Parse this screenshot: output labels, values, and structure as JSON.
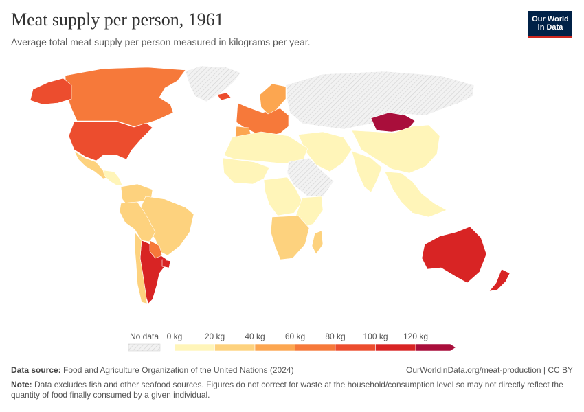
{
  "header": {
    "title": "Meat supply per person, 1961",
    "subtitle": "Average total meat supply per person measured in kilograms per year.",
    "logo_line1": "Our World",
    "logo_line2": "in Data"
  },
  "chart_data": {
    "type": "choropleth-map",
    "year": 1961,
    "unit": "kg",
    "legend": {
      "no_data_label": "No data",
      "tick_labels": [
        "0 kg",
        "20 kg",
        "40 kg",
        "60 kg",
        "80 kg",
        "100 kg",
        "120 kg"
      ],
      "bins": [
        {
          "min": 0,
          "max": 20,
          "color": "#fff5b9"
        },
        {
          "min": 20,
          "max": 40,
          "color": "#fdd27e"
        },
        {
          "min": 40,
          "max": 60,
          "color": "#fca650"
        },
        {
          "min": 60,
          "max": 80,
          "color": "#f6793a"
        },
        {
          "min": 80,
          "max": 100,
          "color": "#ec4d2e"
        },
        {
          "min": 100,
          "max": 120,
          "color": "#d82424"
        },
        {
          "min": 120,
          "max": null,
          "color": "#a90e3b"
        }
      ],
      "no_data_color": "#ececec"
    },
    "regions": [
      {
        "name": "Canada",
        "bin": 3
      },
      {
        "name": "United States",
        "bin": 4
      },
      {
        "name": "Alaska",
        "bin": 4
      },
      {
        "name": "Mexico",
        "bin": 1
      },
      {
        "name": "Central America",
        "bin": 0
      },
      {
        "name": "Colombia / Venezuela",
        "bin": 1
      },
      {
        "name": "Brazil",
        "bin": 1
      },
      {
        "name": "Peru / Bolivia",
        "bin": 1
      },
      {
        "name": "Argentina",
        "bin": 5
      },
      {
        "name": "Uruguay",
        "bin": 5
      },
      {
        "name": "Chile",
        "bin": 1
      },
      {
        "name": "Paraguay",
        "bin": 3
      },
      {
        "name": "Greenland",
        "bin": null
      },
      {
        "name": "Iceland",
        "bin": 4
      },
      {
        "name": "Western Europe",
        "bin": 3
      },
      {
        "name": "Scandinavia",
        "bin": 2
      },
      {
        "name": "Iberia",
        "bin": 2
      },
      {
        "name": "Russia",
        "bin": null
      },
      {
        "name": "Mongolia",
        "bin": 6
      },
      {
        "name": "China",
        "bin": 0
      },
      {
        "name": "India",
        "bin": 0
      },
      {
        "name": "Southeast Asia",
        "bin": 0
      },
      {
        "name": "Middle East",
        "bin": 0
      },
      {
        "name": "North Africa",
        "bin": 0
      },
      {
        "name": "West Africa",
        "bin": 0
      },
      {
        "name": "Central Africa",
        "bin": 0
      },
      {
        "name": "Sudan / Ethiopia",
        "bin": null
      },
      {
        "name": "East Africa",
        "bin": 0
      },
      {
        "name": "Southern Africa",
        "bin": 1
      },
      {
        "name": "Madagascar",
        "bin": 1
      },
      {
        "name": "Australia",
        "bin": 5
      },
      {
        "name": "New Zealand",
        "bin": 5
      }
    ]
  },
  "footer": {
    "source_label": "Data source:",
    "source_text": "Food and Agriculture Organization of the United Nations (2024)",
    "url": "OurWorldinData.org/meat-production | CC BY",
    "note_label": "Note:",
    "note_text": "Data excludes fish and other seafood sources. Figures do not correct for waste at the household/consumption level so may not directly reflect the quantity of food finally consumed by a given individual."
  }
}
